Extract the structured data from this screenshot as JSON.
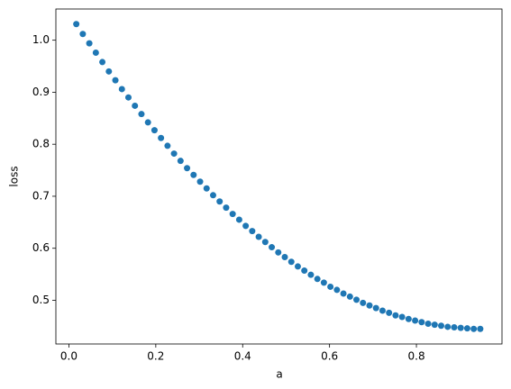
{
  "chart_data": {
    "type": "scatter",
    "x_label": "a",
    "y_label": "loss",
    "color": "#1f77b4",
    "x": [
      0.017,
      0.032,
      0.047,
      0.062,
      0.077,
      0.092,
      0.107,
      0.122,
      0.137,
      0.152,
      0.167,
      0.182,
      0.197,
      0.212,
      0.227,
      0.242,
      0.257,
      0.272,
      0.287,
      0.302,
      0.317,
      0.332,
      0.347,
      0.362,
      0.377,
      0.392,
      0.407,
      0.422,
      0.437,
      0.452,
      0.467,
      0.482,
      0.497,
      0.512,
      0.527,
      0.542,
      0.557,
      0.572,
      0.587,
      0.602,
      0.617,
      0.632,
      0.647,
      0.662,
      0.677,
      0.692,
      0.707,
      0.722,
      0.737,
      0.752,
      0.767,
      0.782,
      0.797,
      0.812,
      0.827,
      0.842,
      0.857,
      0.872,
      0.887,
      0.902,
      0.917,
      0.932,
      0.947
    ],
    "values": [
      1.031,
      1.012,
      0.994,
      0.976,
      0.958,
      0.94,
      0.923,
      0.906,
      0.89,
      0.874,
      0.858,
      0.842,
      0.827,
      0.812,
      0.797,
      0.782,
      0.768,
      0.754,
      0.741,
      0.728,
      0.715,
      0.702,
      0.69,
      0.678,
      0.666,
      0.655,
      0.643,
      0.633,
      0.622,
      0.612,
      0.602,
      0.592,
      0.583,
      0.574,
      0.565,
      0.557,
      0.549,
      0.541,
      0.534,
      0.526,
      0.52,
      0.513,
      0.507,
      0.501,
      0.495,
      0.49,
      0.485,
      0.48,
      0.476,
      0.471,
      0.468,
      0.464,
      0.461,
      0.458,
      0.455,
      0.453,
      0.451,
      0.449,
      0.448,
      0.447,
      0.446,
      0.445,
      0.445
    ],
    "xlim": [
      -0.03,
      0.997
    ],
    "ylim": [
      0.416,
      1.06
    ],
    "xticks": [
      {
        "value": 0,
        "label": "0.0"
      },
      0.2,
      0.4,
      0.6,
      0.8
    ],
    "yticks": [
      0.5,
      0.6,
      0.7,
      0.8,
      0.9,
      {
        "value": 1,
        "label": "1.0"
      }
    ]
  }
}
